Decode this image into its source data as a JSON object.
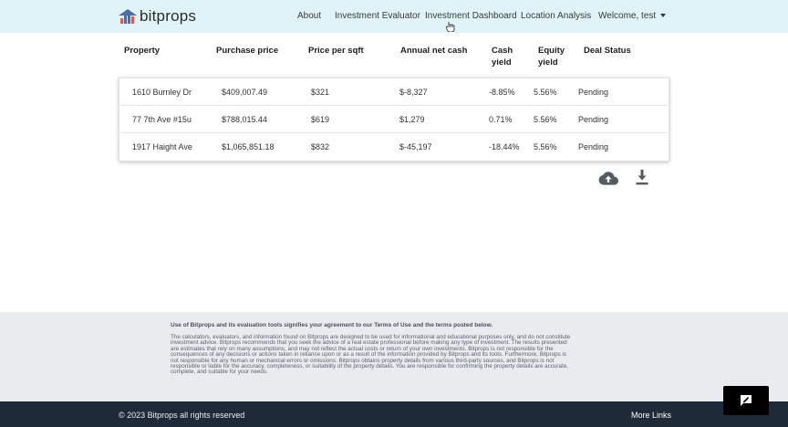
{
  "navbar": {
    "brand": "bitprops",
    "links": [
      "About",
      "Investment Evaluator",
      "Investment Dashboard",
      "Location Analysis"
    ],
    "user_menu": "Welcome, test"
  },
  "table": {
    "headers": [
      "Property",
      "Purchase price",
      "Price per sqft",
      "Annual net cash",
      "Cash yield",
      "Equity yield",
      "Deal Status"
    ],
    "rows": [
      {
        "property": "1610 Burnley Dr",
        "purchase_price": "$409,007.49",
        "price_per_sqft": "$321",
        "annual_net_cash": "$-8,327",
        "cash_yield": "-8.85%",
        "equity_yield": "5.56%",
        "status": "Pending"
      },
      {
        "property": "77 7th Ave #15u",
        "purchase_price": "$788,015.44",
        "price_per_sqft": "$619",
        "annual_net_cash": "$1,279",
        "cash_yield": "0.71%",
        "equity_yield": "5.56%",
        "status": "Pending"
      },
      {
        "property": "1917 Haight Ave",
        "purchase_price": "$1,065,851.18",
        "price_per_sqft": "$832",
        "annual_net_cash": "$-45,197",
        "cash_yield": "-18.44%",
        "equity_yield": "5.56%",
        "status": "Pending"
      }
    ]
  },
  "actions": {
    "upload_icon": "cloud-upload-icon",
    "download_icon": "download-icon"
  },
  "disclaimer": {
    "title": "Use of Bitprops and its evaluation tools signifies your agreement to our Terms of Use and the terms posted below.",
    "body": "The calculators, evaluators, and information found on Bitprops are designed to be used for informational and educational purposes only, and do not constitute investment advice. Bitprops recommends that you seek the advice of a real estate professional before making any type of investment. The results presented are estimates that rely on many assumptions, and may not reflect the actual costs or return of your own investments. Bitprops is not responsible for the consequences of any decisions or actions taken in reliance upon or as a result of the information provided by Bitprops and its tools. Furthermore, Bitprops is not responsible for any human or mechanical errors or omissions. Bitprops obtains property details from various third-party sources, and Bitprops is not responsible or liable for the accuracy, completeness, or suitability of the property details. You are responsible for confirming the property details are accurate, complete, and suitable for your needs."
  },
  "footer": {
    "copyright": "© 2023 Bitprops all rights reserved",
    "more_links": "More Links"
  },
  "colors": {
    "navbar_bg": "#dff3f8",
    "footer_bg": "#1f2a38",
    "disclaimer_bg": "#e9ebee",
    "icon_gray": "#555b63"
  }
}
